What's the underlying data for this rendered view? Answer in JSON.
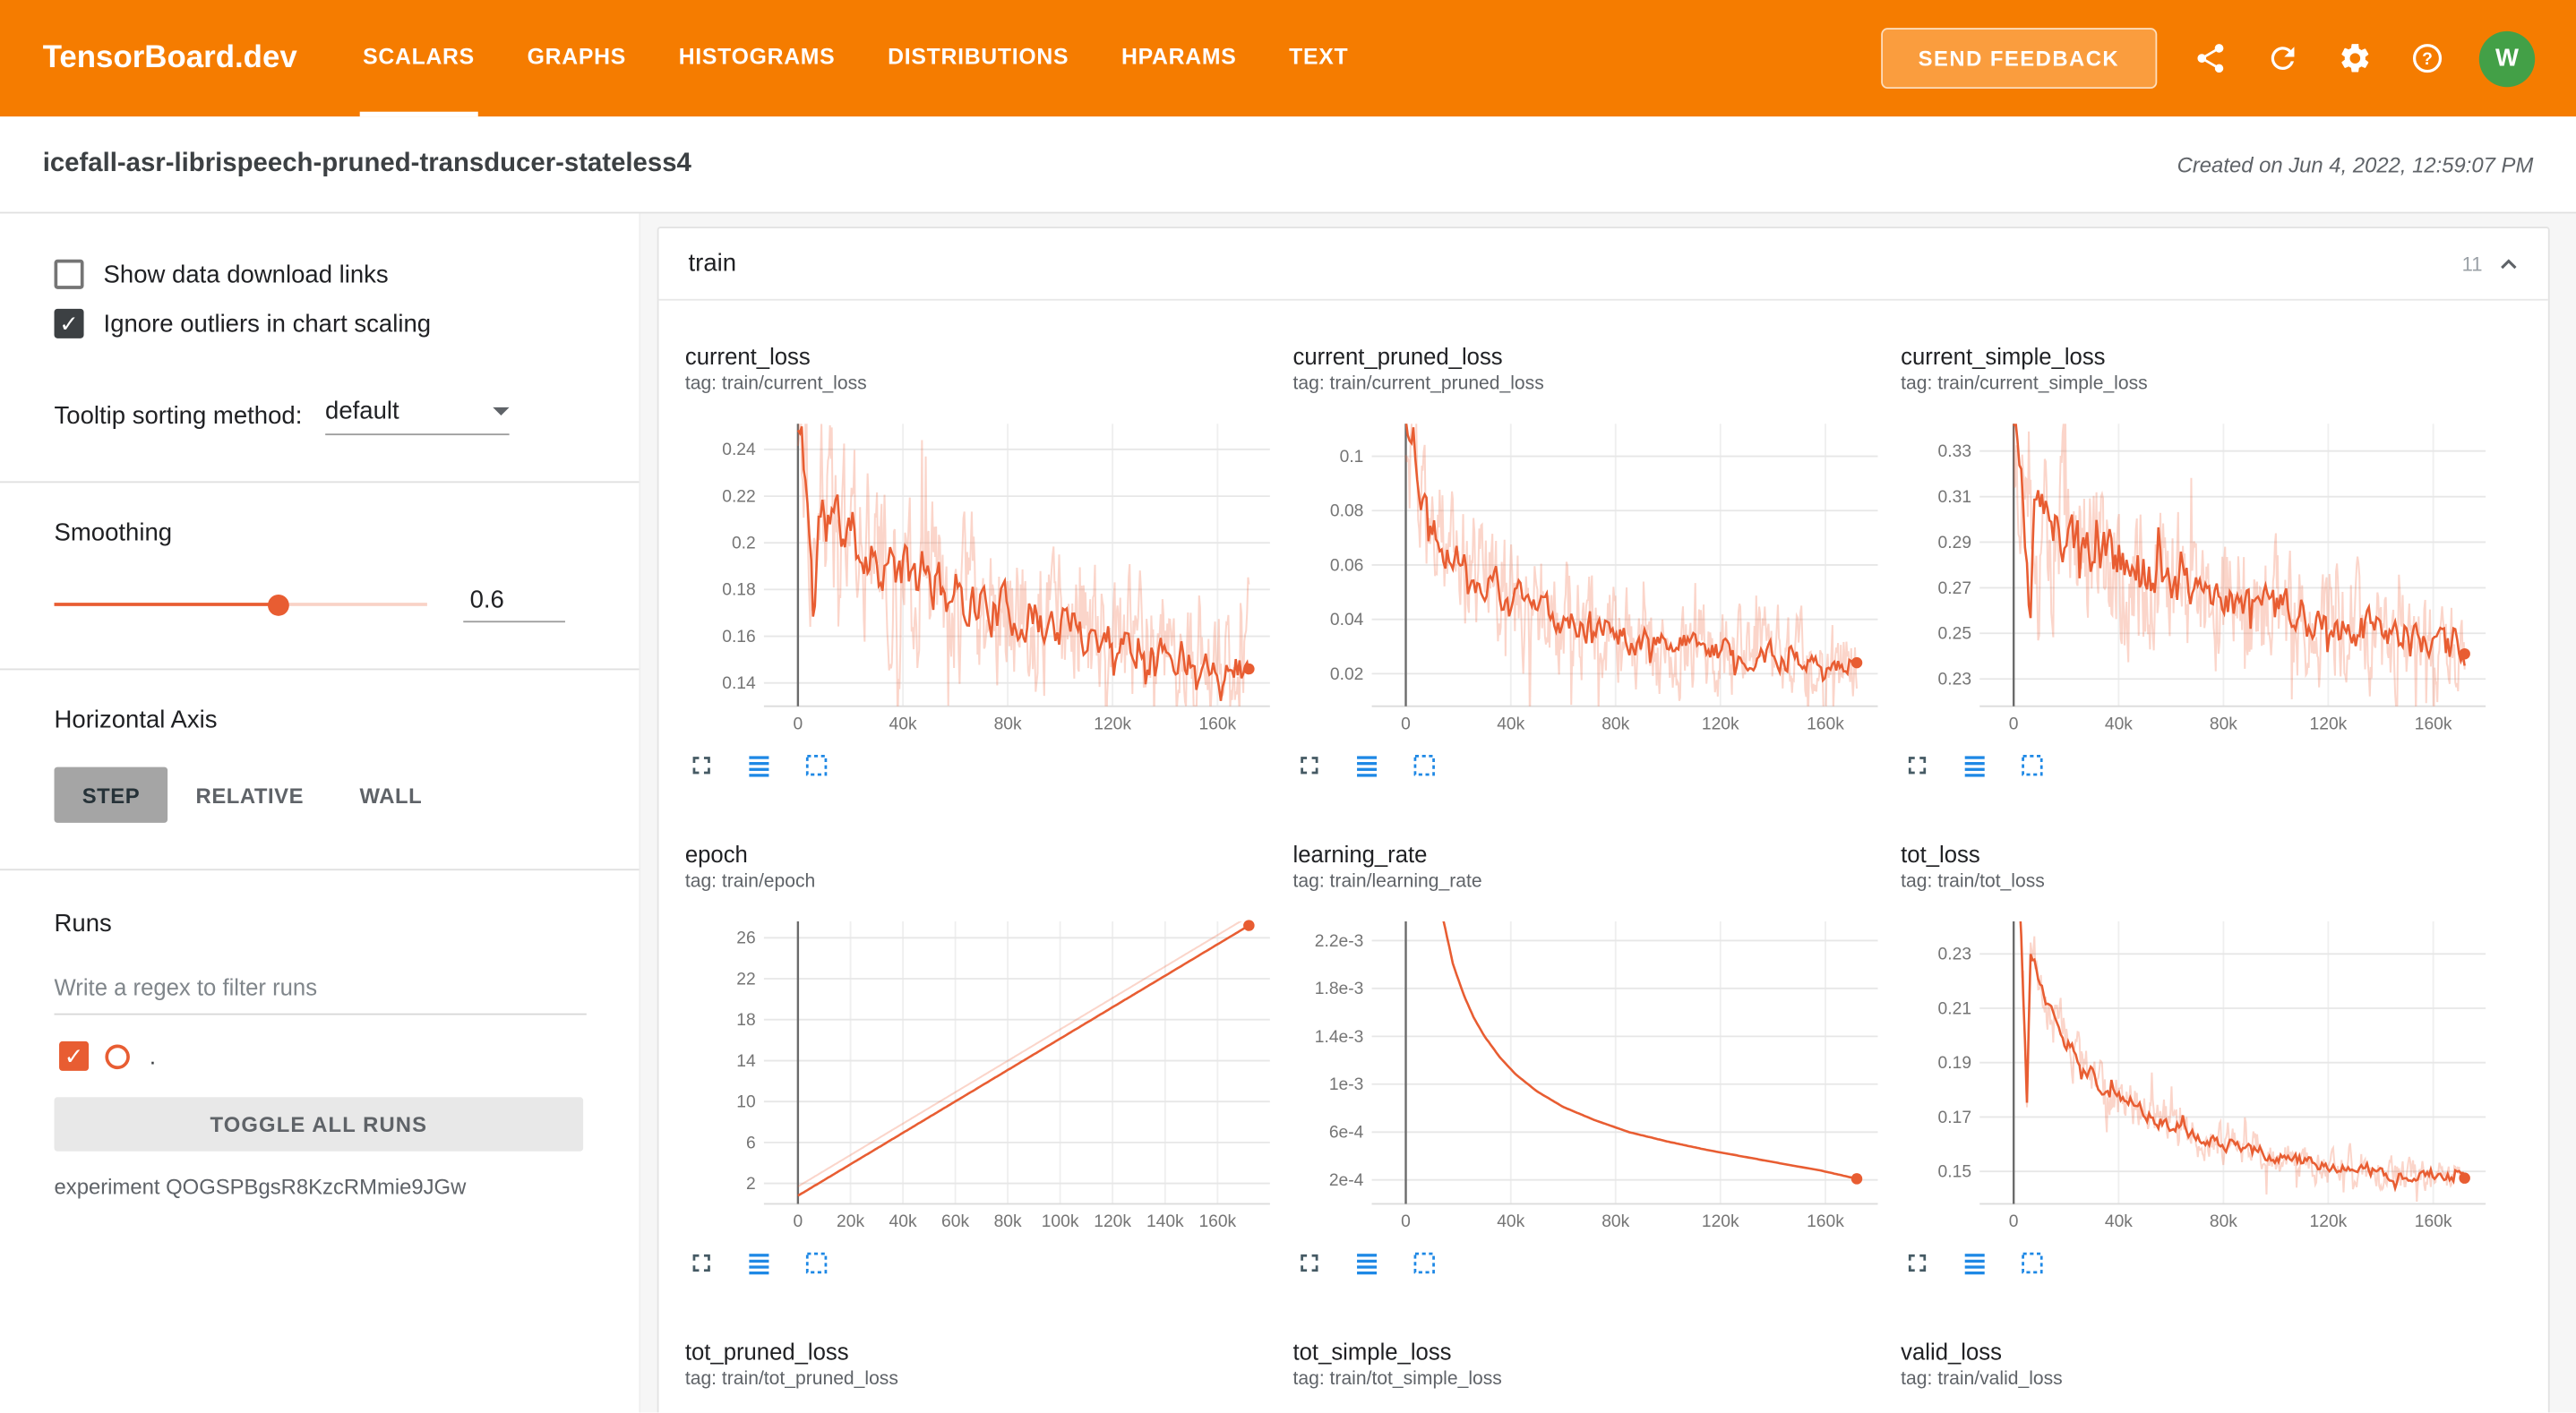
{
  "colors": {
    "header_bg": "#f57c00",
    "feedback_bg": "#fa9d3e",
    "line": "#e85d32",
    "raw_line": "rgba(240,104,66,0.28)",
    "avatar_bg": "#43a047",
    "toolbar_blue": "#1e88e5",
    "toolbar_dark": "#455a64"
  },
  "header": {
    "brand": "TensorBoard.dev",
    "tabs": [
      {
        "label": "SCALARS",
        "active": true
      },
      {
        "label": "GRAPHS",
        "active": false
      },
      {
        "label": "HISTOGRAMS",
        "active": false
      },
      {
        "label": "DISTRIBUTIONS",
        "active": false
      },
      {
        "label": "HPARAMS",
        "active": false
      },
      {
        "label": "TEXT",
        "active": false
      }
    ],
    "feedback_label": "SEND FEEDBACK",
    "icons": [
      "share-icon",
      "refresh-icon",
      "settings-icon",
      "help-icon"
    ],
    "avatar": "W"
  },
  "subheader": {
    "title": "icefall-asr-librispeech-pruned-transducer-stateless4",
    "created": "Created on Jun 4, 2022, 12:59:07 PM"
  },
  "sidebar": {
    "show_download": {
      "label": "Show data download links",
      "checked": false
    },
    "ignore_outliers": {
      "label": "Ignore outliers in chart scaling",
      "checked": true
    },
    "tooltip_sort": {
      "label": "Tooltip sorting method:",
      "value": "default"
    },
    "smoothing": {
      "label": "Smoothing",
      "value": "0.6"
    },
    "horizontal_axis": {
      "label": "Horizontal Axis",
      "options": [
        {
          "label": "STEP",
          "active": true
        },
        {
          "label": "RELATIVE",
          "active": false
        },
        {
          "label": "WALL",
          "active": false
        }
      ]
    },
    "runs": {
      "label": "Runs",
      "filter_placeholder": "Write a regex to filter runs",
      "run": {
        "name": ".",
        "checked": true
      },
      "toggle_all_label": "TOGGLE ALL RUNS",
      "experiment": "experiment QOGSPBgsR8KzcRMmie9JGw"
    }
  },
  "main": {
    "section": {
      "title": "train",
      "count": "11"
    },
    "toolbar_icons": [
      "fullscreen-icon",
      "log-scale-icon",
      "fit-domain-icon"
    ]
  },
  "chart_data": [
    {
      "id": "current_loss",
      "type": "line",
      "title": "current_loss",
      "tag": "tag: train/current_loss",
      "x_ticks": [
        {
          "v": 0,
          "label": "0"
        },
        {
          "v": 40000,
          "label": "40k"
        },
        {
          "v": 80000,
          "label": "80k"
        },
        {
          "v": 120000,
          "label": "120k"
        },
        {
          "v": 160000,
          "label": "160k"
        }
      ],
      "y_ticks": [
        {
          "v": 0.14,
          "label": "0.14"
        },
        {
          "v": 0.16,
          "label": "0.16"
        },
        {
          "v": 0.18,
          "label": "0.18"
        },
        {
          "v": 0.2,
          "label": "0.2"
        },
        {
          "v": 0.22,
          "label": "0.22"
        },
        {
          "v": 0.24,
          "label": "0.24"
        }
      ],
      "y_range": [
        0.13,
        0.251
      ],
      "x_end": 172000,
      "points": [
        [
          0,
          0.248
        ],
        [
          2000,
          0.238
        ],
        [
          4000,
          0.212
        ],
        [
          6000,
          0.168
        ],
        [
          8000,
          0.212
        ],
        [
          12000,
          0.213
        ],
        [
          18000,
          0.205
        ],
        [
          25000,
          0.197
        ],
        [
          35000,
          0.19
        ],
        [
          45000,
          0.185
        ],
        [
          60000,
          0.178
        ],
        [
          75000,
          0.172
        ],
        [
          90000,
          0.167
        ],
        [
          105000,
          0.163
        ],
        [
          120000,
          0.159
        ],
        [
          135000,
          0.155
        ],
        [
          150000,
          0.151
        ],
        [
          162000,
          0.149
        ],
        [
          172000,
          0.146
        ]
      ],
      "amp_solid": 0.011,
      "amp_raw": 0.032,
      "seed": 11,
      "end_dot": true
    },
    {
      "id": "current_pruned_loss",
      "type": "line",
      "title": "current_pruned_loss",
      "tag": "tag: train/current_pruned_loss",
      "x_ticks": [
        {
          "v": 0,
          "label": "0"
        },
        {
          "v": 40000,
          "label": "40k"
        },
        {
          "v": 80000,
          "label": "80k"
        },
        {
          "v": 120000,
          "label": "120k"
        },
        {
          "v": 160000,
          "label": "160k"
        }
      ],
      "y_ticks": [
        {
          "v": 0.02,
          "label": "0.02"
        },
        {
          "v": 0.04,
          "label": "0.04"
        },
        {
          "v": 0.06,
          "label": "0.06"
        },
        {
          "v": 0.08,
          "label": "0.08"
        },
        {
          "v": 0.1,
          "label": "0.1"
        }
      ],
      "y_range": [
        0.008,
        0.112
      ],
      "x_end": 172000,
      "points": [
        [
          0,
          0.112
        ],
        [
          3000,
          0.105
        ],
        [
          6000,
          0.085
        ],
        [
          10000,
          0.077
        ],
        [
          15000,
          0.068
        ],
        [
          22000,
          0.06
        ],
        [
          30000,
          0.054
        ],
        [
          40000,
          0.048
        ],
        [
          55000,
          0.042
        ],
        [
          70000,
          0.038
        ],
        [
          85000,
          0.034
        ],
        [
          100000,
          0.031
        ],
        [
          120000,
          0.028
        ],
        [
          140000,
          0.026
        ],
        [
          160000,
          0.0245
        ],
        [
          172000,
          0.024
        ]
      ],
      "amp_solid": 0.006,
      "amp_raw": 0.02,
      "seed": 22,
      "end_dot": true
    },
    {
      "id": "current_simple_loss",
      "type": "line",
      "title": "current_simple_loss",
      "tag": "tag: train/current_simple_loss",
      "x_ticks": [
        {
          "v": 0,
          "label": "0"
        },
        {
          "v": 40000,
          "label": "40k"
        },
        {
          "v": 80000,
          "label": "80k"
        },
        {
          "v": 120000,
          "label": "120k"
        },
        {
          "v": 160000,
          "label": "160k"
        }
      ],
      "y_ticks": [
        {
          "v": 0.23,
          "label": "0.23"
        },
        {
          "v": 0.25,
          "label": "0.25"
        },
        {
          "v": 0.27,
          "label": "0.27"
        },
        {
          "v": 0.29,
          "label": "0.29"
        },
        {
          "v": 0.31,
          "label": "0.31"
        },
        {
          "v": 0.33,
          "label": "0.33"
        }
      ],
      "y_range": [
        0.218,
        0.342
      ],
      "x_end": 172000,
      "points": [
        [
          0,
          0.34
        ],
        [
          2000,
          0.33
        ],
        [
          4000,
          0.302
        ],
        [
          6000,
          0.252
        ],
        [
          8000,
          0.305
        ],
        [
          12000,
          0.3
        ],
        [
          18000,
          0.295
        ],
        [
          25000,
          0.29
        ],
        [
          35000,
          0.284
        ],
        [
          45000,
          0.279
        ],
        [
          60000,
          0.273
        ],
        [
          75000,
          0.268
        ],
        [
          90000,
          0.263
        ],
        [
          105000,
          0.258
        ],
        [
          120000,
          0.254
        ],
        [
          135000,
          0.25
        ],
        [
          150000,
          0.246
        ],
        [
          162000,
          0.243
        ],
        [
          172000,
          0.241
        ]
      ],
      "amp_solid": 0.011,
      "amp_raw": 0.03,
      "seed": 33,
      "end_dot": true
    },
    {
      "id": "epoch",
      "type": "line",
      "title": "epoch",
      "tag": "tag: train/epoch",
      "x_ticks": [
        {
          "v": 0,
          "label": "0"
        },
        {
          "v": 20000,
          "label": "20k"
        },
        {
          "v": 40000,
          "label": "40k"
        },
        {
          "v": 60000,
          "label": "60k"
        },
        {
          "v": 80000,
          "label": "80k"
        },
        {
          "v": 100000,
          "label": "100k"
        },
        {
          "v": 120000,
          "label": "120k"
        },
        {
          "v": 140000,
          "label": "140k"
        },
        {
          "v": 160000,
          "label": "160k"
        }
      ],
      "y_ticks": [
        {
          "v": 2,
          "label": "2"
        },
        {
          "v": 6,
          "label": "6"
        },
        {
          "v": 10,
          "label": "10"
        },
        {
          "v": 14,
          "label": "14"
        },
        {
          "v": 18,
          "label": "18"
        },
        {
          "v": 22,
          "label": "22"
        },
        {
          "v": 26,
          "label": "26"
        }
      ],
      "y_range": [
        0,
        27.6
      ],
      "x_end": 172000,
      "points": [
        [
          0,
          0.8
        ],
        [
          172000,
          27.2
        ]
      ],
      "amp_solid": 0,
      "amp_raw": 0,
      "raw_offset": 0.9,
      "seed": 44,
      "end_dot": true
    },
    {
      "id": "learning_rate",
      "type": "line",
      "title": "learning_rate",
      "tag": "tag: train/learning_rate",
      "x_ticks": [
        {
          "v": 0,
          "label": "0"
        },
        {
          "v": 40000,
          "label": "40k"
        },
        {
          "v": 80000,
          "label": "80k"
        },
        {
          "v": 120000,
          "label": "120k"
        },
        {
          "v": 160000,
          "label": "160k"
        }
      ],
      "y_ticks": [
        {
          "v": 0.0002,
          "label": "2e-4"
        },
        {
          "v": 0.0006,
          "label": "6e-4"
        },
        {
          "v": 0.001,
          "label": "1e-3"
        },
        {
          "v": 0.0014,
          "label": "1.4e-3"
        },
        {
          "v": 0.0018,
          "label": "1.8e-3"
        },
        {
          "v": 0.0022,
          "label": "2.2e-3"
        }
      ],
      "y_range": [
        0,
        0.00236
      ],
      "x_end": 172000,
      "points": [
        [
          0,
          0.007
        ],
        [
          3000,
          0.005
        ],
        [
          6000,
          0.0038
        ],
        [
          9000,
          0.003
        ],
        [
          12000,
          0.0026
        ],
        [
          15000,
          0.0023
        ],
        [
          18000,
          0.002
        ],
        [
          22000,
          0.00175
        ],
        [
          26000,
          0.00155
        ],
        [
          30000,
          0.0014
        ],
        [
          36000,
          0.00122
        ],
        [
          42000,
          0.00108
        ],
        [
          50000,
          0.00094
        ],
        [
          60000,
          0.00081
        ],
        [
          72000,
          0.0007
        ],
        [
          85000,
          0.0006
        ],
        [
          100000,
          0.00052
        ],
        [
          115000,
          0.00045
        ],
        [
          130000,
          0.00039
        ],
        [
          145000,
          0.00033
        ],
        [
          158000,
          0.00028
        ],
        [
          166000,
          0.00024
        ],
        [
          172000,
          0.00021
        ]
      ],
      "amp_solid": 0,
      "amp_raw": 0,
      "seed": 55,
      "end_dot": true
    },
    {
      "id": "tot_loss",
      "type": "line",
      "title": "tot_loss",
      "tag": "tag: train/tot_loss",
      "x_ticks": [
        {
          "v": 0,
          "label": "0"
        },
        {
          "v": 40000,
          "label": "40k"
        },
        {
          "v": 80000,
          "label": "80k"
        },
        {
          "v": 120000,
          "label": "120k"
        },
        {
          "v": 160000,
          "label": "160k"
        }
      ],
      "y_ticks": [
        {
          "v": 0.15,
          "label": "0.15"
        },
        {
          "v": 0.17,
          "label": "0.17"
        },
        {
          "v": 0.19,
          "label": "0.19"
        },
        {
          "v": 0.21,
          "label": "0.21"
        },
        {
          "v": 0.23,
          "label": "0.23"
        }
      ],
      "y_range": [
        0.138,
        0.242
      ],
      "x_end": 172000,
      "points": [
        [
          0,
          0.3
        ],
        [
          2000,
          0.26
        ],
        [
          3500,
          0.225
        ],
        [
          5000,
          0.176
        ],
        [
          6500,
          0.23
        ],
        [
          9000,
          0.225
        ],
        [
          12000,
          0.215
        ],
        [
          16000,
          0.205
        ],
        [
          20000,
          0.198
        ],
        [
          26000,
          0.19
        ],
        [
          33000,
          0.183
        ],
        [
          41000,
          0.177
        ],
        [
          50000,
          0.172
        ],
        [
          60000,
          0.167
        ],
        [
          72000,
          0.163
        ],
        [
          85000,
          0.159
        ],
        [
          100000,
          0.156
        ],
        [
          115000,
          0.153
        ],
        [
          130000,
          0.151
        ],
        [
          145000,
          0.149
        ],
        [
          158000,
          0.148
        ],
        [
          172000,
          0.1475
        ]
      ],
      "amp_solid": 0.0028,
      "amp_raw": 0.008,
      "seed": 66,
      "end_dot": true
    },
    {
      "id": "tot_pruned_loss",
      "type": "line",
      "title": "tot_pruned_loss",
      "tag": "tag: train/tot_pruned_loss",
      "title_only": true
    },
    {
      "id": "tot_simple_loss",
      "type": "line",
      "title": "tot_simple_loss",
      "tag": "tag: train/tot_simple_loss",
      "title_only": true
    },
    {
      "id": "valid_loss",
      "type": "line",
      "title": "valid_loss",
      "tag": "tag: train/valid_loss",
      "title_only": true
    }
  ]
}
